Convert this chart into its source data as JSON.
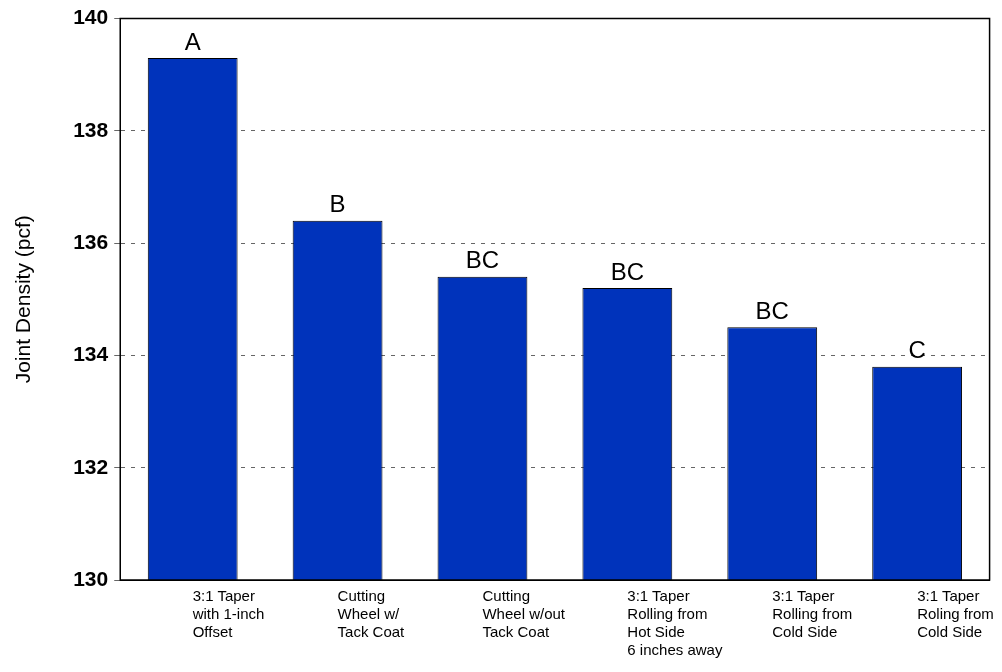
{
  "chart_data": {
    "type": "bar",
    "ylabel": "Joint Density (pcf)",
    "categories": [
      "3:1 Taper\nwith 1-inch\nOffset",
      "Cutting\nWheel w/\nTack Coat",
      "Cutting\nWheel w/out\nTack Coat",
      "3:1 Taper\nRolling from\nHot Side\n6 inches away",
      "3:1 Taper\nRolling from\nCold Side",
      "3:1 Taper\nRoling from\nCold Side"
    ],
    "values": [
      139.3,
      136.4,
      135.4,
      135.2,
      134.5,
      133.8
    ],
    "color": "#0033bb",
    "ylim": [
      130,
      140
    ],
    "yticks": [
      130,
      132,
      134,
      136,
      138,
      140
    ],
    "grid": "y",
    "legend": false,
    "annotations": [
      {
        "text": "A",
        "x": "3:1 Taper\nwith 1-inch\nOffset",
        "y": 139.3
      },
      {
        "text": "B",
        "x": "Cutting\nWheel w/\nTack Coat",
        "y": 136.4
      },
      {
        "text": "BC",
        "x": "Cutting\nWheel w/out\nTack Coat",
        "y": 135.4
      },
      {
        "text": "BC",
        "x": "3:1 Taper\nRolling from\nHot Side\n6 inches away",
        "y": 135.2
      },
      {
        "text": "BC",
        "x": "3:1 Taper\nRolling from\nCold Side",
        "y": 134.5
      },
      {
        "text": "C",
        "x": "3:1 Taper\nRoling from\nCold Side",
        "y": 133.8
      }
    ]
  }
}
